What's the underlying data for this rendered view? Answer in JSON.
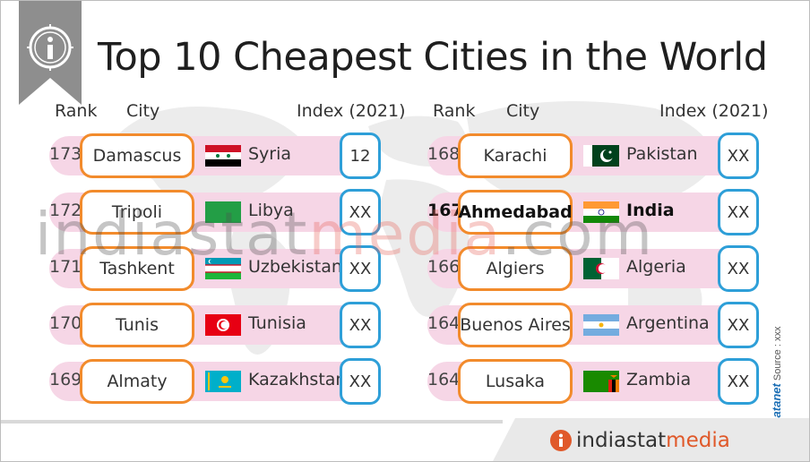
{
  "title": "Top 10 Cheapest Cities in the World",
  "headers": {
    "rank": "Rank",
    "city": "City",
    "index": "Index (2021)"
  },
  "left_rows": [
    {
      "rank": "173",
      "city": "Damascus",
      "country": "Syria",
      "index": "12"
    },
    {
      "rank": "172",
      "city": "Tripoli",
      "country": "Libya",
      "index": "XX"
    },
    {
      "rank": "171",
      "city": "Tashkent",
      "country": "Uzbekistan",
      "index": "XX"
    },
    {
      "rank": "170",
      "city": "Tunis",
      "country": "Tunisia",
      "index": "XX"
    },
    {
      "rank": "169",
      "city": "Almaty",
      "country": "Kazakhstan",
      "index": "XX"
    }
  ],
  "right_rows": [
    {
      "rank": "168",
      "city": "Karachi",
      "country": "Pakistan",
      "index": "XX"
    },
    {
      "rank": "167",
      "city": "Ahmedabad",
      "country": "India",
      "index": "XX",
      "highlight": true
    },
    {
      "rank": "166",
      "city": "Algiers",
      "country": "Algeria",
      "index": "XX"
    },
    {
      "rank": "164",
      "city": "Buenos Aires",
      "country": "Argentina",
      "index": "XX"
    },
    {
      "rank": "164",
      "city": "Lusaka",
      "country": "Zambia",
      "index": "XX"
    }
  ],
  "watermark": {
    "part1": "indiastat",
    "part2": "media",
    "part3": ".com"
  },
  "source": {
    "copyright": "©",
    "brand": "Datanet",
    "text": "Source : xxx"
  },
  "footer": {
    "logo_part1": "indiastat",
    "logo_part2": "media"
  },
  "colors": {
    "city_border": "#f28b2c",
    "index_border": "#2e9fd8",
    "row_band": "#f6d6e6",
    "logo_accent": "#e0592a"
  },
  "icons": {
    "title": "info-circle-icon",
    "logo": "info-circle-icon",
    "background": "world-map"
  }
}
